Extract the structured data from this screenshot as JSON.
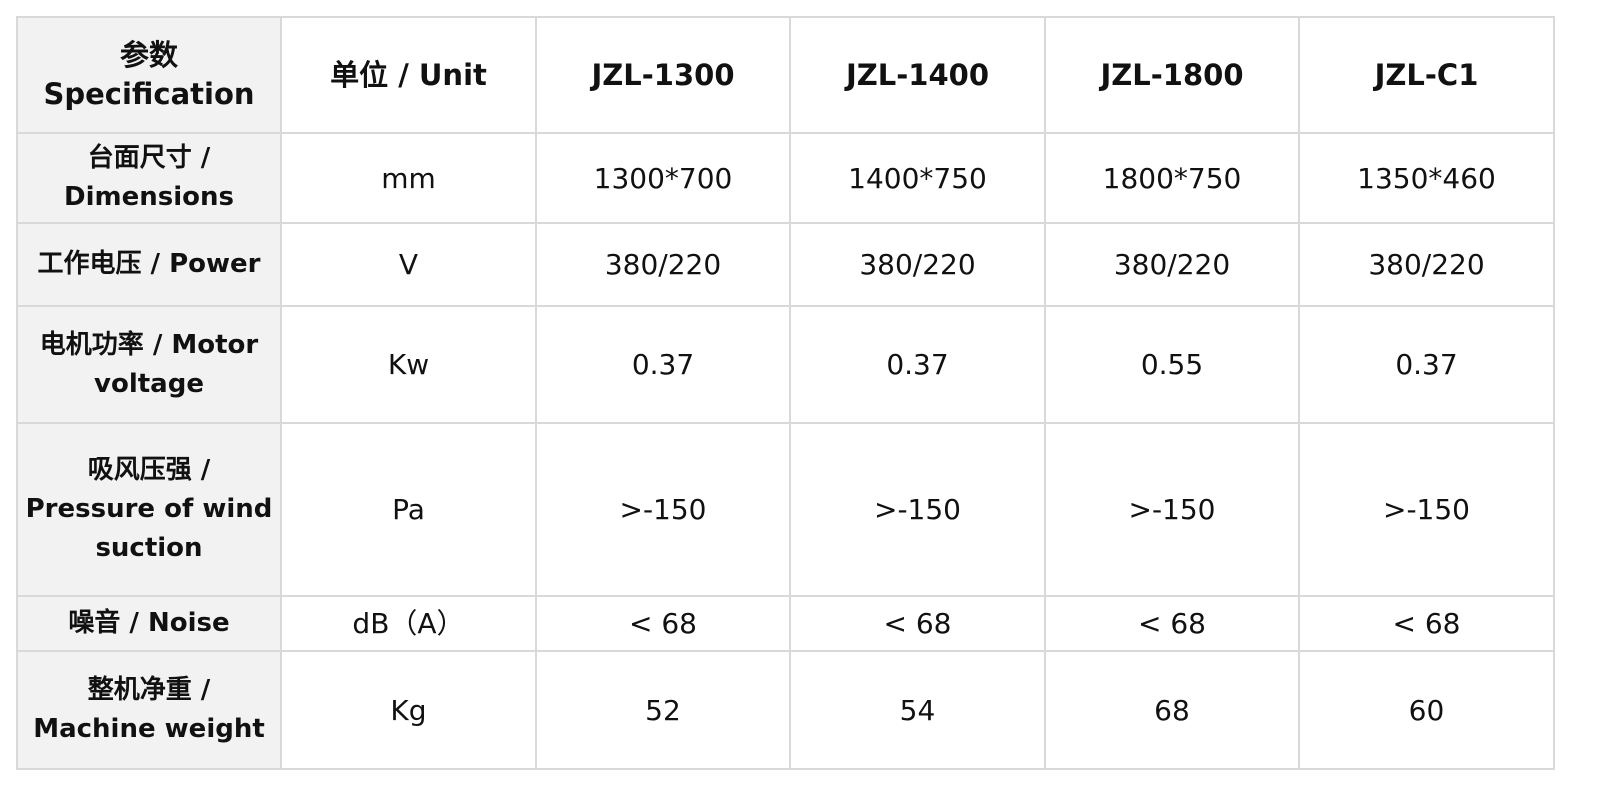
{
  "table": {
    "header": [
      "参数Specification",
      "单位 / Unit",
      "JZL-1300",
      "JZL-1400",
      "JZL-1800",
      "JZL-C1"
    ],
    "rows": [
      [
        [
          "台面尺寸 /",
          "Dimensions"
        ],
        "mm",
        "1300*700",
        "1400*750",
        "1800*750",
        "1350*460"
      ],
      [
        [
          "工作电压 / Power"
        ],
        "V",
        "380/220",
        "380/220",
        "380/220",
        "380/220"
      ],
      [
        [
          "电机功率 / Motor",
          "voltage"
        ],
        "Kw",
        "0.37",
        "0.37",
        "0.55",
        "0.37"
      ],
      [
        [
          "吸风压强 /",
          "Pressure of wind",
          "suction"
        ],
        "Pa",
        ">-150",
        ">-150",
        ">-150",
        ">-150"
      ],
      [
        [
          "噪音 / Noise"
        ],
        "dB（A）",
        "< 68",
        "< 68",
        "< 68",
        "< 68"
      ],
      [
        [
          "整机净重  /",
          "Machine weight"
        ],
        "Kg",
        "52",
        "54",
        "68",
        "60"
      ]
    ]
  }
}
